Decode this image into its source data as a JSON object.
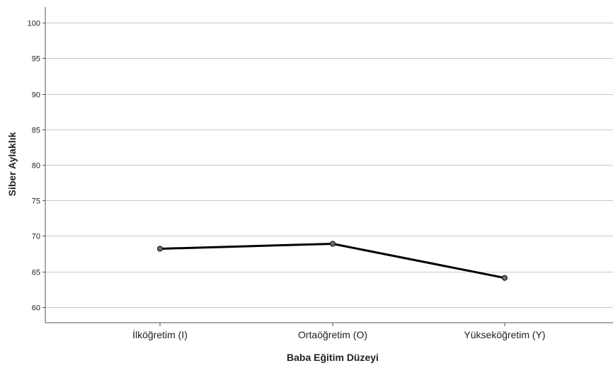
{
  "chart_data": {
    "type": "line",
    "title": "",
    "xlabel": "Baba Eğitim Düzeyi",
    "ylabel": "Siber Aylaklık",
    "categories": [
      "İlköğretim (I)",
      "Ortaöğretim (O)",
      "Yükseköğretim (Y)"
    ],
    "values": [
      68.2,
      68.9,
      64.1
    ],
    "ylim": [
      57.8,
      102.2
    ],
    "yticks": [
      60,
      65,
      70,
      75,
      80,
      85,
      90,
      95,
      100
    ],
    "grid": true,
    "legend": false,
    "colors": {
      "line": "#000000",
      "marker_fill": "#6e6e6e",
      "grid": "#c8c8c8",
      "axis": "#555555"
    }
  }
}
